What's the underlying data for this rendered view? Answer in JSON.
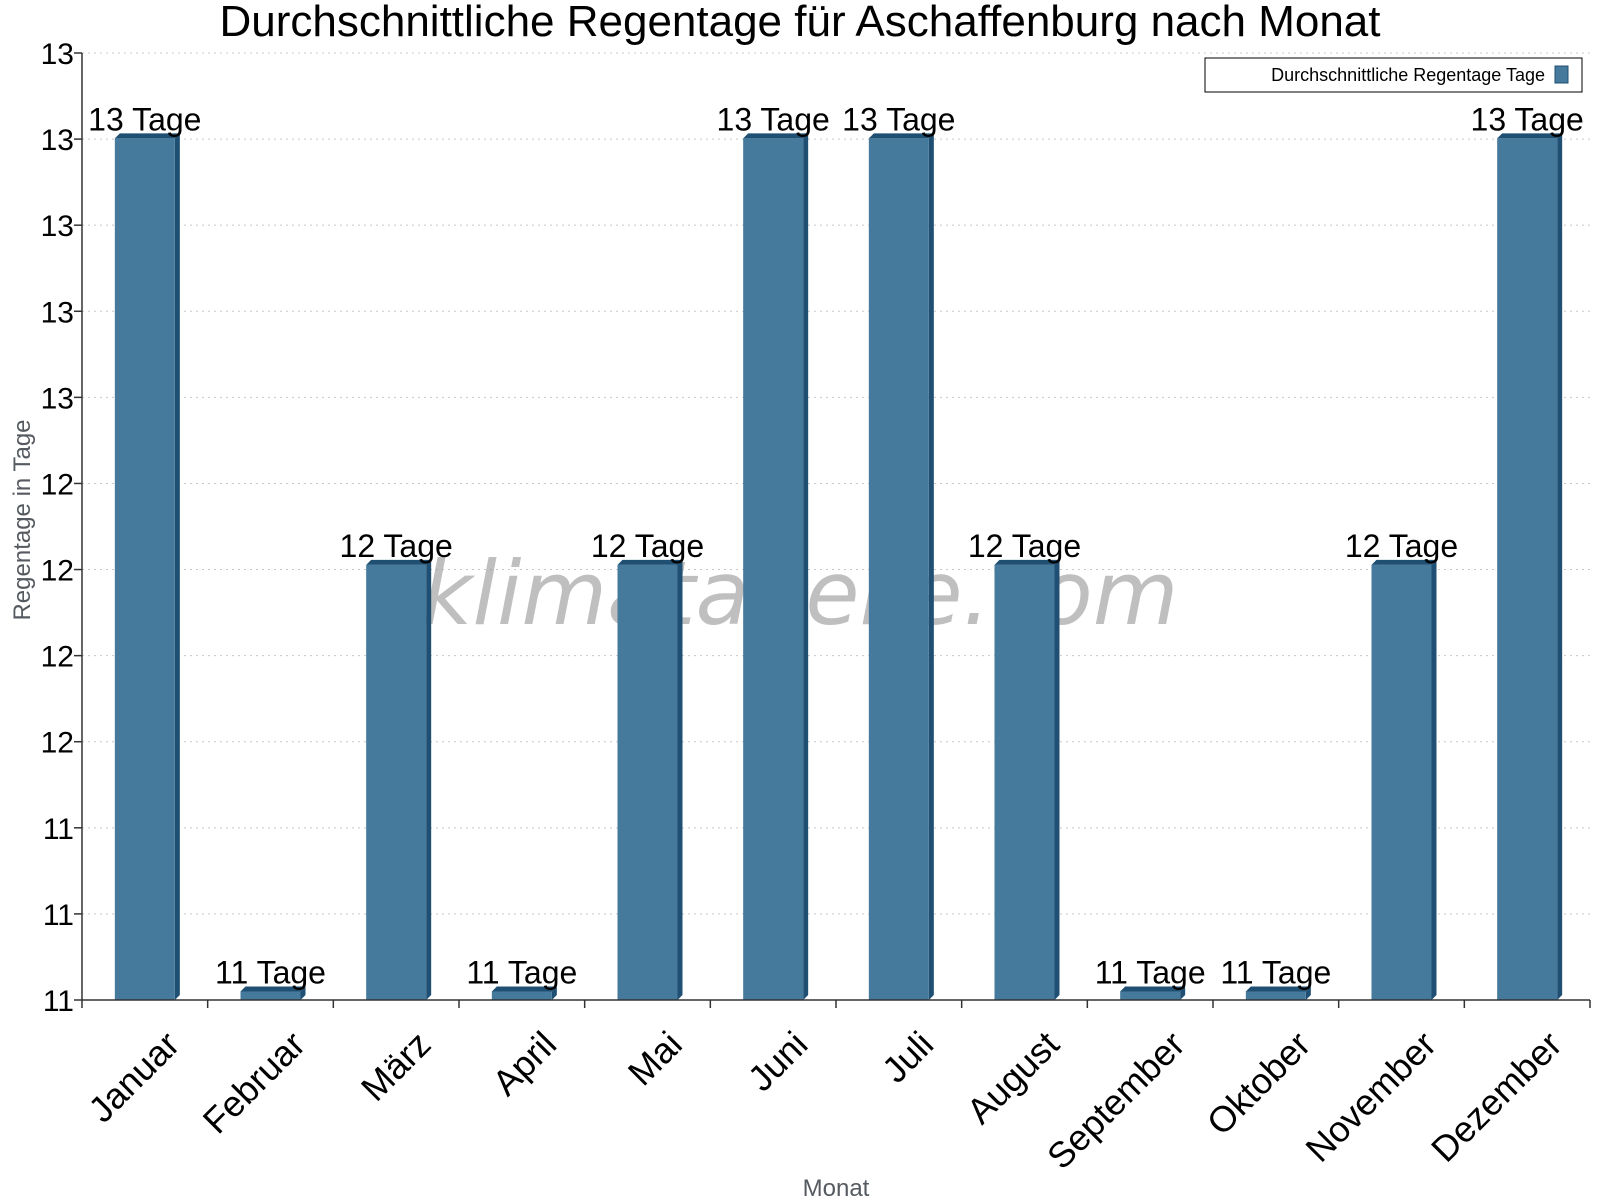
{
  "chart_data": {
    "type": "bar",
    "title": "Durchschnittliche Regentage für Aschaffenburg nach Monat",
    "xlabel": "Monat",
    "ylabel": "Regentage in Tage",
    "categories": [
      "Januar",
      "Februar",
      "März",
      "April",
      "Mai",
      "Juni",
      "Juli",
      "August",
      "September",
      "Oktober",
      "November",
      "Dezember"
    ],
    "series": [
      {
        "name": "Durchschnittliche Regentage Tage",
        "values": [
          13,
          11,
          12,
          11,
          12,
          13,
          13,
          12,
          11,
          11,
          12,
          13
        ],
        "value_labels": [
          "13 Tage",
          "11 Tage",
          "12 Tage",
          "11 Tage",
          "12 Tage",
          "13 Tage",
          "13 Tage",
          "12 Tage",
          "11 Tage",
          "11 Tage",
          "12 Tage",
          "13 Tage"
        ]
      }
    ],
    "y_tick_labels": [
      "11",
      "11",
      "11",
      "12",
      "12",
      "12",
      "12",
      "13",
      "13",
      "13",
      "13",
      "13"
    ],
    "ylim": [
      10.98,
      13.2
    ],
    "grid": true,
    "legend_position": "top-right",
    "bar_color": "#467a9c",
    "bar_side_color": "#1f4f72",
    "watermark": "klimatabelle.com"
  }
}
